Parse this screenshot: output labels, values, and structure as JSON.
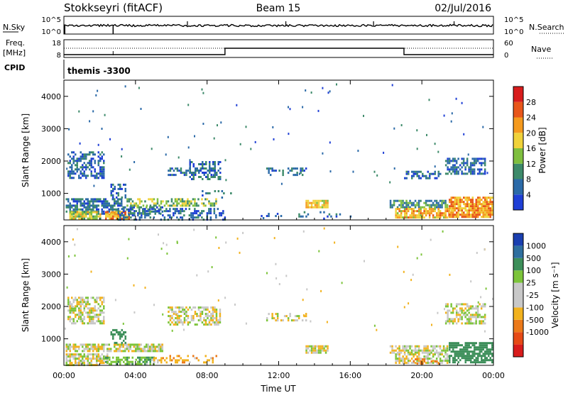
{
  "header": {
    "station": "Stokkseyri (fitACF)",
    "beam": "Beam 15",
    "date": "02/Jul/2016"
  },
  "sky_panel": {
    "left_label": "N.Sky",
    "right_label": "N.Search",
    "left_ticks": [
      "10^5",
      "10^0"
    ],
    "right_ticks": [
      "10^5",
      "10^0"
    ]
  },
  "freq_panel": {
    "left_label_top": "Freq.",
    "left_label_unit": "[MHz]",
    "right_label": "Nave",
    "left_ticks": [
      "18",
      "8"
    ],
    "right_ticks": [
      "60",
      "0"
    ],
    "cpid_label": "CPID",
    "cpid_value": "themis -3300"
  },
  "x_axis": {
    "label": "Time UT",
    "ticks": [
      "00:00",
      "04:00",
      "08:00",
      "12:00",
      "16:00",
      "20:00",
      "00:00"
    ]
  },
  "colors": {
    "power_scale": [
      "#1f3fd6",
      "#2b6aa8",
      "#3d8a6a",
      "#7fbf3f",
      "#f0d23a",
      "#f59a1e",
      "#e8561a",
      "#d81c1c"
    ],
    "velocity_scale": [
      "#1a3fb0",
      "#2f6f9f",
      "#3d8f5a",
      "#7cc43a",
      "#c8c8c8",
      "#c8c8c8",
      "#f2b21e",
      "#ec7a1a",
      "#e64a16",
      "#d81c1c"
    ]
  },
  "chart_data": [
    {
      "type": "heatmap",
      "title": "",
      "xlabel": "Time UT",
      "ylabel": "Slant Range [km]",
      "x_range_hours": [
        0,
        24
      ],
      "ylim": [
        180,
        4500
      ],
      "y_ticks": [
        1000,
        2000,
        3000,
        4000
      ],
      "colorbar": {
        "label": "Power [dB]",
        "ticks": [
          "4",
          "8",
          "12",
          "16",
          "20",
          "24",
          "28"
        ],
        "range": [
          0,
          32
        ]
      },
      "blobs": [
        {
          "t0": 0.2,
          "t1": 2.2,
          "r0": 1500,
          "r1": 2300,
          "v": 6,
          "d": 0.55
        },
        {
          "t0": 0.1,
          "t1": 3.2,
          "r0": 600,
          "r1": 850,
          "v": 6,
          "d": 0.75
        },
        {
          "t0": 0.1,
          "t1": 5.5,
          "r0": 400,
          "r1": 600,
          "v": 8,
          "d": 0.6
        },
        {
          "t0": 0.3,
          "t1": 2.0,
          "r0": 200,
          "r1": 450,
          "v": 16,
          "d": 0.85
        },
        {
          "t0": 2.3,
          "t1": 3.6,
          "r0": 250,
          "r1": 450,
          "v": 22,
          "d": 0.85
        },
        {
          "t0": 2.6,
          "t1": 3.4,
          "r0": 900,
          "r1": 1300,
          "v": 6,
          "d": 0.4
        },
        {
          "t0": 3.5,
          "t1": 8.5,
          "r0": 600,
          "r1": 850,
          "v": 14,
          "d": 0.55
        },
        {
          "t0": 3.0,
          "t1": 9.0,
          "r0": 200,
          "r1": 550,
          "v": 6,
          "d": 0.4
        },
        {
          "t0": 5.8,
          "t1": 7.0,
          "r0": 1600,
          "r1": 1800,
          "v": 6,
          "d": 0.5
        },
        {
          "t0": 7.0,
          "t1": 8.7,
          "r0": 1450,
          "r1": 2000,
          "v": 6,
          "d": 0.55
        },
        {
          "t0": 7.5,
          "t1": 9.5,
          "r0": 900,
          "r1": 1100,
          "v": 6,
          "d": 0.15
        },
        {
          "t0": 11.3,
          "t1": 13.5,
          "r0": 1600,
          "r1": 1800,
          "v": 6,
          "d": 0.35
        },
        {
          "t0": 11.0,
          "t1": 12.5,
          "r0": 250,
          "r1": 400,
          "v": 6,
          "d": 0.15
        },
        {
          "t0": 13.5,
          "t1": 14.7,
          "r0": 550,
          "r1": 800,
          "v": 18,
          "d": 0.75
        },
        {
          "t0": 13.0,
          "t1": 16.0,
          "r0": 250,
          "r1": 450,
          "v": 6,
          "d": 0.15
        },
        {
          "t0": 18.2,
          "t1": 21.5,
          "r0": 600,
          "r1": 800,
          "v": 10,
          "d": 0.65
        },
        {
          "t0": 18.5,
          "t1": 21.5,
          "r0": 250,
          "r1": 550,
          "v": 20,
          "d": 0.8
        },
        {
          "t0": 19.0,
          "t1": 21.0,
          "r0": 1500,
          "r1": 1700,
          "v": 6,
          "d": 0.5
        },
        {
          "t0": 21.3,
          "t1": 23.5,
          "r0": 1600,
          "r1": 2100,
          "v": 6,
          "d": 0.55
        },
        {
          "t0": 21.5,
          "t1": 23.9,
          "r0": 250,
          "r1": 900,
          "v": 22,
          "d": 0.85
        }
      ]
    },
    {
      "type": "heatmap",
      "title": "",
      "xlabel": "Time UT",
      "ylabel": "Slant Range [km]",
      "x_range_hours": [
        0,
        24
      ],
      "ylim": [
        180,
        4500
      ],
      "y_ticks": [
        1000,
        2000,
        3000,
        4000
      ],
      "colorbar": {
        "label": "Velocity [m s⁻¹]",
        "ticks": [
          "1000",
          "500",
          "100",
          "25",
          "-25",
          "-100",
          "-500",
          "-1000"
        ]
      },
      "blobs": [
        {
          "t0": 0.2,
          "t1": 2.2,
          "r0": 1500,
          "r1": 2300,
          "v": 0,
          "d": 0.6
        },
        {
          "t0": 0.1,
          "t1": 5.5,
          "r0": 600,
          "r1": 850,
          "v": 0,
          "d": 0.75
        },
        {
          "t0": 0.1,
          "t1": 2.4,
          "r0": 200,
          "r1": 550,
          "v": 0,
          "d": 0.7
        },
        {
          "t0": 2.3,
          "t1": 5.0,
          "r0": 200,
          "r1": 450,
          "v": 80,
          "d": 0.75
        },
        {
          "t0": 2.6,
          "t1": 3.4,
          "r0": 900,
          "r1": 1300,
          "v": 300,
          "d": 0.35
        },
        {
          "t0": 5.0,
          "t1": 8.5,
          "r0": 250,
          "r1": 500,
          "v": -80,
          "d": 0.3
        },
        {
          "t0": 5.8,
          "t1": 8.7,
          "r0": 1450,
          "r1": 2000,
          "v": 0,
          "d": 0.55
        },
        {
          "t0": 11.3,
          "t1": 13.5,
          "r0": 1600,
          "r1": 1800,
          "v": 0,
          "d": 0.4
        },
        {
          "t0": 13.5,
          "t1": 14.7,
          "r0": 550,
          "r1": 800,
          "v": 0,
          "d": 0.75
        },
        {
          "t0": 18.2,
          "t1": 21.5,
          "r0": 600,
          "r1": 800,
          "v": 0,
          "d": 0.7
        },
        {
          "t0": 18.5,
          "t1": 21.5,
          "r0": 250,
          "r1": 550,
          "v": 0,
          "d": 0.6
        },
        {
          "t0": 19.5,
          "t1": 21.0,
          "r0": 250,
          "r1": 400,
          "v": -150,
          "d": 0.4
        },
        {
          "t0": 21.3,
          "t1": 23.5,
          "r0": 1500,
          "r1": 2100,
          "v": 0,
          "d": 0.6
        },
        {
          "t0": 21.5,
          "t1": 23.9,
          "r0": 300,
          "r1": 900,
          "v": 250,
          "d": 0.75
        }
      ]
    }
  ]
}
